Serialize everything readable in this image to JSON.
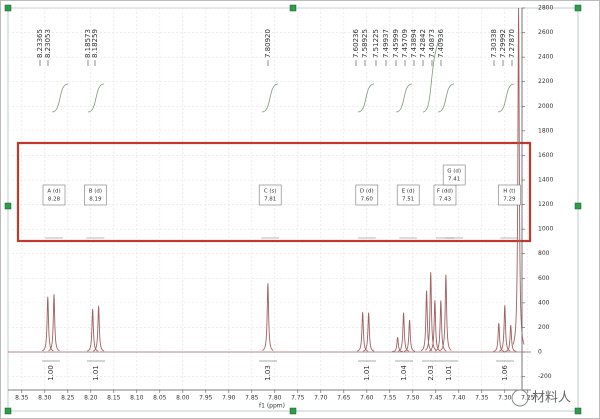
{
  "chart_data": {
    "type": "nmr",
    "xlabel": "f1 (ppm)",
    "xlim": [
      8.38,
      7.243
    ],
    "xticks": [
      8.35,
      {
        "value": 8.3,
        "label": "8.30"
      },
      8.25,
      {
        "value": 8.2,
        "label": "8.20"
      },
      8.15,
      {
        "value": 8.1,
        "label": "8.10"
      },
      8.05,
      {
        "value": 8.0,
        "label": "8.00"
      },
      7.95,
      {
        "value": 7.9,
        "label": "7.90"
      },
      7.85,
      {
        "value": 7.8,
        "label": "7.80"
      },
      7.75,
      {
        "value": 7.7,
        "label": "7.70"
      },
      7.65,
      {
        "value": 7.6,
        "label": "7.60"
      },
      7.55,
      {
        "value": 7.5,
        "label": "7.50"
      },
      7.45,
      {
        "value": 7.4,
        "label": "7.40"
      },
      7.35,
      {
        "value": 7.3,
        "label": "7.30"
      },
      7.25
    ],
    "ylim": [
      -200,
      2800
    ],
    "yticks": [
      -200,
      0,
      200,
      400,
      600,
      800,
      1000,
      1200,
      1400,
      1600,
      1800,
      2000,
      2200,
      2400,
      2600,
      2800
    ],
    "grid": true,
    "series": [
      {
        "color": "#a06060",
        "x": [
          8.2935,
          8.28,
          8.196,
          8.183,
          7.815,
          7.609,
          7.596,
          7.533,
          7.52,
          7.507,
          7.47,
          7.461,
          7.452,
          7.439,
          7.428,
          7.313,
          7.3,
          7.287,
          7.27
        ],
        "values": [
          450,
          470,
          350,
          375,
          560,
          325,
          320,
          120,
          320,
          260,
          500,
          650,
          420,
          420,
          630,
          235,
          380,
          220,
          2800
        ]
      }
    ],
    "peak_labels": [
      "8.23365",
      "8.23053",
      "8.18573",
      "8.18259",
      "7.80920",
      "7.60236",
      "7.58925",
      "7.51225",
      "7.49937",
      "7.45999",
      "7.45709",
      "7.43894",
      "7.42842",
      "7.40873",
      "7.40936",
      "7.30338",
      "7.29992",
      "7.27870"
    ],
    "multiplets": [
      {
        "label": "A (d)",
        "shift": "8.28"
      },
      {
        "label": "B (d)",
        "shift": "8.19"
      },
      {
        "label": "C (s)",
        "shift": "7.81"
      },
      {
        "label": "D (d)",
        "shift": "7.60"
      },
      {
        "label": "E (d)",
        "shift": "7.51"
      },
      {
        "label": "F (dd)",
        "shift": "7.43"
      },
      {
        "label": "G (d)",
        "shift": "7.41"
      },
      {
        "label": "H (t)",
        "shift": "7.29"
      }
    ],
    "integrals": [
      "1.00",
      "1.01",
      "1.03",
      "1.01",
      "1.04",
      "2.03",
      "1.01",
      "1.06"
    ]
  },
  "watermark": "材料人"
}
